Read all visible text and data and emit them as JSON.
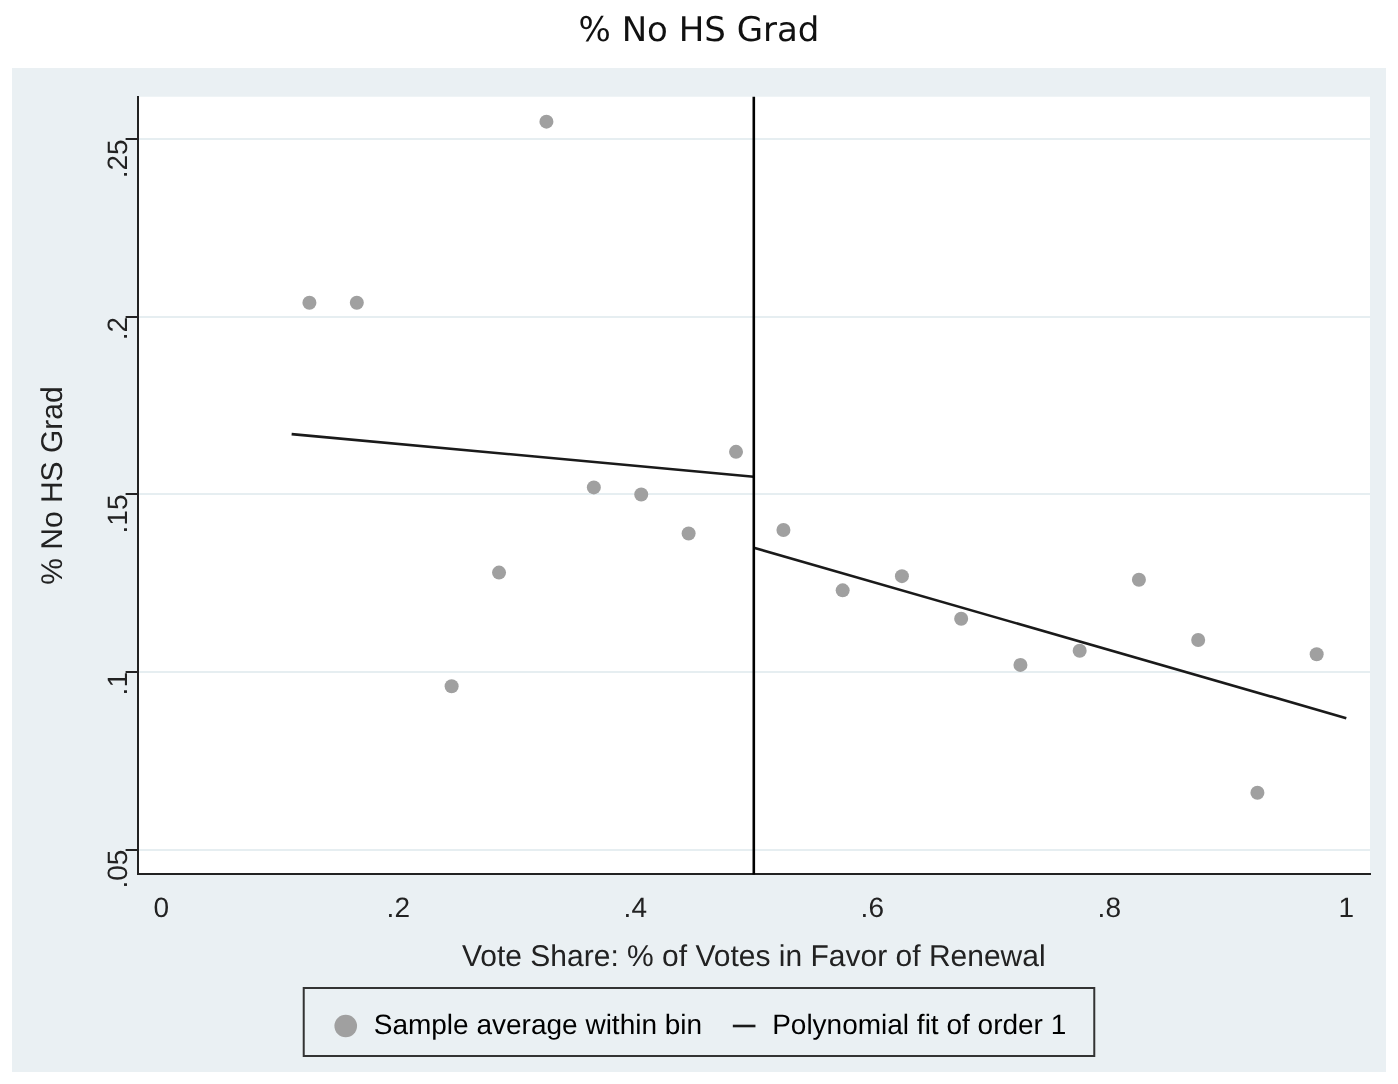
{
  "chart_data": {
    "type": "scatter",
    "title": "% No HS Grad",
    "xlabel": "Vote Share: % of Votes in Favor of Renewal",
    "ylabel": "% No HS Grad",
    "xlim": [
      -0.02,
      1.02
    ],
    "ylim": [
      0.043,
      0.262
    ],
    "xticks": [
      0,
      {
        "value": 0.2,
        "label": ".2"
      },
      {
        "value": 0.4,
        "label": ".4"
      },
      {
        "value": 0.6,
        "label": ".6"
      },
      {
        "value": 0.8,
        "label": ".8"
      },
      1
    ],
    "yticks": [
      {
        "value": 0.05,
        "label": ".05"
      },
      {
        "value": 0.1,
        "label": ".1"
      },
      {
        "value": 0.15,
        "label": ".15"
      },
      {
        "value": 0.2,
        "label": ".2"
      },
      {
        "value": 0.25,
        "label": ".25"
      }
    ],
    "grid": "y",
    "legend": "bottom",
    "marker": "circle",
    "ref_lines": [
      {
        "axis": "x",
        "value": 0.5,
        "color": "#000000"
      }
    ],
    "series": [
      {
        "name": "Sample average within bin",
        "color": "#a0a0a0",
        "x": [
          0.125,
          0.165,
          0.245,
          0.285,
          0.325,
          0.365,
          0.405,
          0.445,
          0.485,
          0.525,
          0.575,
          0.625,
          0.675,
          0.725,
          0.775,
          0.825,
          0.875,
          0.925,
          0.975
        ],
        "values": [
          0.204,
          0.204,
          0.096,
          0.128,
          0.255,
          0.152,
          0.15,
          0.139,
          0.162,
          0.14,
          0.123,
          0.127,
          0.115,
          0.102,
          0.106,
          0.126,
          0.109,
          0.066,
          0.105
        ]
      },
      {
        "name": "Polynomial fit of order 1",
        "type": "line",
        "color": "#1a1a1a",
        "marker": "none",
        "x": [
          0.11,
          0.5
        ],
        "values": [
          0.167,
          0.155
        ]
      },
      {
        "type": "line",
        "color": "#1a1a1a",
        "marker": "none",
        "x": [
          0.5,
          1
        ],
        "values": [
          0.135,
          0.087
        ]
      }
    ]
  }
}
